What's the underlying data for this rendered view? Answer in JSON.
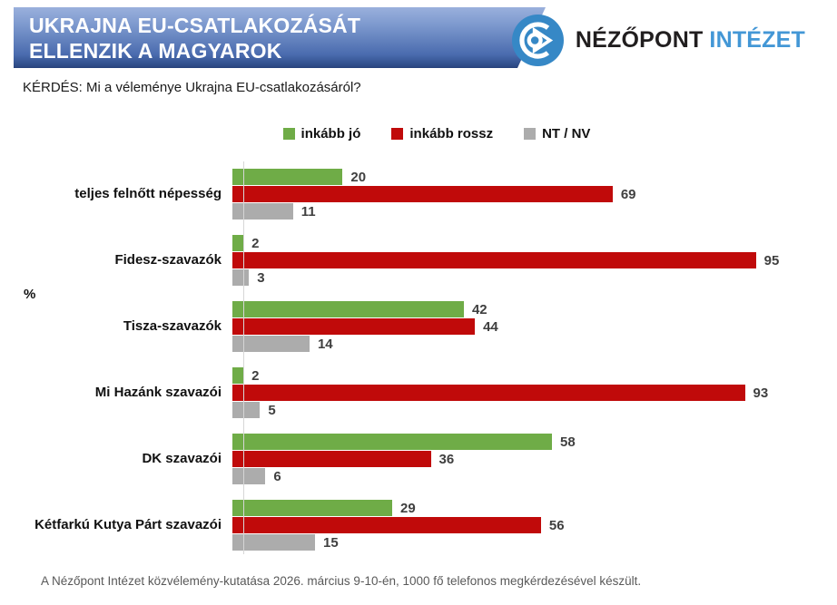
{
  "header": {
    "title_line1": "UKRAJNA EU-CSATLAKOZÁSÁT",
    "title_line2": "ELLENZIK A MAGYAROK",
    "brand": {
      "name_dark": "NÉZŐPONT",
      "name_accent": "INTÉZET",
      "icon": "nezopont-eye-icon",
      "icon_color": "#3688c6",
      "accent_color": "#4397d6"
    }
  },
  "question": "KÉRDÉS: Mi a véleménye Ukrajna EU-csatlakozásáról?",
  "unit_label": "%",
  "chart_data": {
    "type": "bar",
    "orientation": "horizontal",
    "title": "",
    "xlabel": "",
    "ylabel": "%",
    "xlim": [
      0,
      100
    ],
    "grid": false,
    "legend_position": "top",
    "value_labels": true,
    "categories": [
      "teljes felnőtt népesség",
      "Fidesz-szavazók",
      "Tisza-szavazók",
      "Mi Hazánk szavazói",
      "DK szavazói",
      "Kétfarkú Kutya Párt szavazói"
    ],
    "series": [
      {
        "name": "inkább jó",
        "color": "#6fac47",
        "values": [
          20,
          2,
          42,
          2,
          58,
          29
        ]
      },
      {
        "name": "inkább rossz",
        "color": "#c00a0a",
        "values": [
          69,
          95,
          44,
          93,
          36,
          56
        ]
      },
      {
        "name": "NT / NV",
        "color": "#acacac",
        "values": [
          11,
          3,
          14,
          5,
          6,
          15
        ]
      }
    ]
  },
  "footer": "A Nézőpont Intézet közvélemény-kutatása 2026. március 9-10-én, 1000 fő telefonos megkérdezésével készült."
}
